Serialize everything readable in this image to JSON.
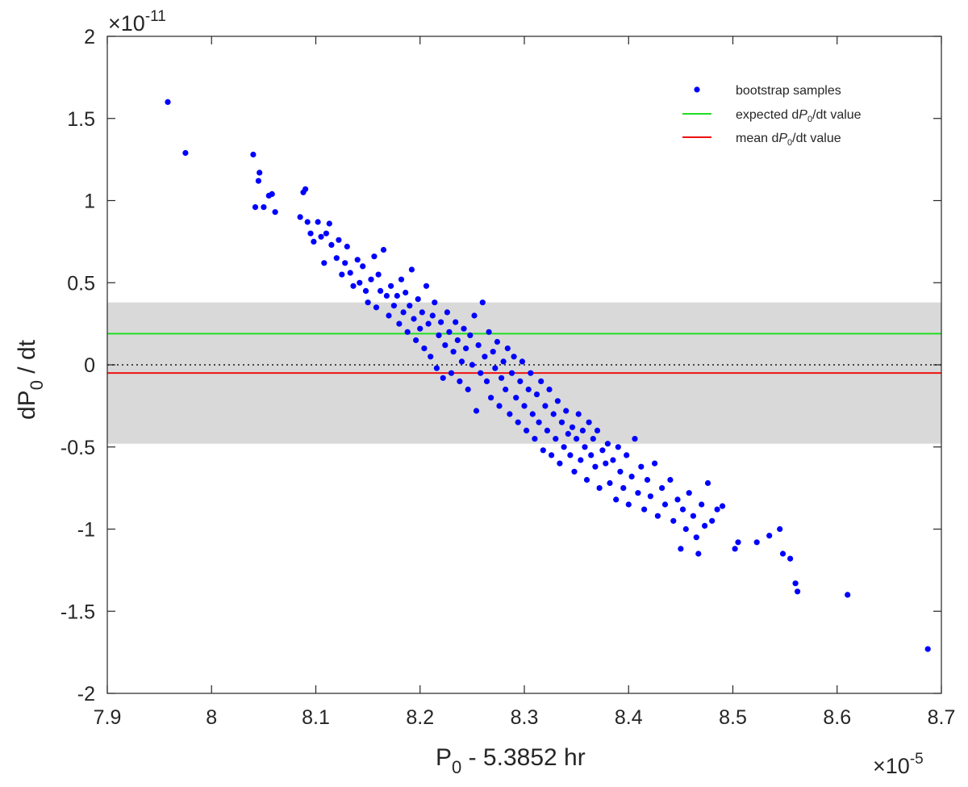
{
  "chart_data": {
    "type": "scatter",
    "xlabel": {
      "main": "P",
      "subscript": "0",
      "rest": " - 5.3852 hr"
    },
    "ylabel": {
      "main": "dP",
      "subscript": "0",
      "rest": " / dt"
    },
    "x_multiplier": {
      "base": "×10",
      "exponent": "-5"
    },
    "y_multiplier": {
      "base": "×10",
      "exponent": "-11"
    },
    "xlim": [
      7.9,
      8.7
    ],
    "ylim": [
      -2,
      2
    ],
    "x_ticks": [
      "7.9",
      "8",
      "8.1",
      "8.2",
      "8.3",
      "8.4",
      "8.5",
      "8.6",
      "8.7"
    ],
    "y_ticks": [
      "2",
      "1.5",
      "1",
      "0.5",
      "0",
      "-0.5",
      "-1",
      "-1.5",
      "-2"
    ],
    "shaded_band": {
      "y_min": -0.48,
      "y_max": 0.38,
      "color": "#d9d9d9"
    },
    "reference_lines": [
      {
        "name": "expected",
        "y": 0.19,
        "color": "#22dd22"
      },
      {
        "name": "mean",
        "y": -0.05,
        "color": "#ee1111"
      },
      {
        "name": "zero",
        "y": 0.0,
        "color": "#333333",
        "style": "dotted"
      }
    ],
    "legend": {
      "position": "top-right",
      "entries": [
        {
          "text": "bootstrap samples",
          "kind": "marker",
          "color": "#0000ff"
        },
        {
          "text_pre": "expected d",
          "text_p": "P",
          "text_sub": "0",
          "text_post": "/dt value",
          "kind": "line",
          "color": "#22dd22"
        },
        {
          "text_pre": "mean d",
          "text_p": "P",
          "text_sub": "0",
          "text_post": "/dt  value",
          "kind": "line",
          "color": "#ee1111"
        }
      ]
    },
    "series": [
      {
        "name": "bootstrap samples",
        "color": "#0000ff",
        "points": [
          [
            7.958,
            1.6
          ],
          [
            7.975,
            1.29
          ],
          [
            8.04,
            1.28
          ],
          [
            8.042,
            0.96
          ],
          [
            8.045,
            1.12
          ],
          [
            8.046,
            1.17
          ],
          [
            8.05,
            0.96
          ],
          [
            8.055,
            1.03
          ],
          [
            8.058,
            1.04
          ],
          [
            8.061,
            0.93
          ],
          [
            8.085,
            0.9
          ],
          [
            8.088,
            1.05
          ],
          [
            8.09,
            1.07
          ],
          [
            8.092,
            0.87
          ],
          [
            8.095,
            0.8
          ],
          [
            8.098,
            0.75
          ],
          [
            8.102,
            0.87
          ],
          [
            8.105,
            0.78
          ],
          [
            8.108,
            0.62
          ],
          [
            8.11,
            0.8
          ],
          [
            8.113,
            0.86
          ],
          [
            8.115,
            0.73
          ],
          [
            8.12,
            0.65
          ],
          [
            8.122,
            0.76
          ],
          [
            8.125,
            0.55
          ],
          [
            8.128,
            0.62
          ],
          [
            8.13,
            0.72
          ],
          [
            8.133,
            0.56
          ],
          [
            8.136,
            0.48
          ],
          [
            8.14,
            0.64
          ],
          [
            8.142,
            0.5
          ],
          [
            8.145,
            0.6
          ],
          [
            8.148,
            0.45
          ],
          [
            8.15,
            0.38
          ],
          [
            8.153,
            0.52
          ],
          [
            8.156,
            0.66
          ],
          [
            8.158,
            0.35
          ],
          [
            8.16,
            0.55
          ],
          [
            8.162,
            0.45
          ],
          [
            8.165,
            0.7
          ],
          [
            8.168,
            0.42
          ],
          [
            8.17,
            0.3
          ],
          [
            8.172,
            0.48
          ],
          [
            8.175,
            0.36
          ],
          [
            8.178,
            0.42
          ],
          [
            8.18,
            0.25
          ],
          [
            8.182,
            0.52
          ],
          [
            8.184,
            0.32
          ],
          [
            8.186,
            0.44
          ],
          [
            8.188,
            0.2
          ],
          [
            8.19,
            0.36
          ],
          [
            8.192,
            0.58
          ],
          [
            8.194,
            0.28
          ],
          [
            8.196,
            0.15
          ],
          [
            8.198,
            0.4
          ],
          [
            8.2,
            0.22
          ],
          [
            8.202,
            0.32
          ],
          [
            8.204,
            0.1
          ],
          [
            8.206,
            0.48
          ],
          [
            8.208,
            0.25
          ],
          [
            8.21,
            0.05
          ],
          [
            8.212,
            0.3
          ],
          [
            8.214,
            0.38
          ],
          [
            8.216,
            -0.02
          ],
          [
            8.218,
            0.18
          ],
          [
            8.22,
            0.26
          ],
          [
            8.222,
            -0.08
          ],
          [
            8.224,
            0.12
          ],
          [
            8.226,
            0.32
          ],
          [
            8.228,
            0.2
          ],
          [
            8.23,
            -0.05
          ],
          [
            8.232,
            0.08
          ],
          [
            8.234,
            0.26
          ],
          [
            8.236,
            0.15
          ],
          [
            8.238,
            -0.1
          ],
          [
            8.24,
            0.02
          ],
          [
            8.242,
            0.22
          ],
          [
            8.244,
            0.1
          ],
          [
            8.246,
            -0.15
          ],
          [
            8.248,
            0.18
          ],
          [
            8.25,
            0.0
          ],
          [
            8.252,
            0.3
          ],
          [
            8.254,
            -0.28
          ],
          [
            8.256,
            0.12
          ],
          [
            8.258,
            -0.05
          ],
          [
            8.26,
            0.38
          ],
          [
            8.262,
            0.05
          ],
          [
            8.264,
            -0.1
          ],
          [
            8.266,
            0.2
          ],
          [
            8.268,
            -0.2
          ],
          [
            8.27,
            0.08
          ],
          [
            8.272,
            -0.02
          ],
          [
            8.274,
            0.14
          ],
          [
            8.276,
            -0.25
          ],
          [
            8.278,
            -0.08
          ],
          [
            8.28,
            0.02
          ],
          [
            8.282,
            -0.15
          ],
          [
            8.284,
            0.1
          ],
          [
            8.286,
            -0.3
          ],
          [
            8.288,
            -0.05
          ],
          [
            8.29,
            0.05
          ],
          [
            8.292,
            -0.2
          ],
          [
            8.294,
            -0.35
          ],
          [
            8.296,
            -0.1
          ],
          [
            8.298,
            0.02
          ],
          [
            8.3,
            -0.25
          ],
          [
            8.302,
            -0.4
          ],
          [
            8.304,
            -0.15
          ],
          [
            8.306,
            -0.05
          ],
          [
            8.308,
            -0.3
          ],
          [
            8.31,
            -0.45
          ],
          [
            8.312,
            -0.18
          ],
          [
            8.314,
            -0.35
          ],
          [
            8.316,
            -0.1
          ],
          [
            8.318,
            -0.52
          ],
          [
            8.32,
            -0.25
          ],
          [
            8.322,
            -0.4
          ],
          [
            8.324,
            -0.15
          ],
          [
            8.326,
            -0.55
          ],
          [
            8.328,
            -0.3
          ],
          [
            8.33,
            -0.45
          ],
          [
            8.332,
            -0.22
          ],
          [
            8.334,
            -0.6
          ],
          [
            8.336,
            -0.35
          ],
          [
            8.338,
            -0.5
          ],
          [
            8.34,
            -0.28
          ],
          [
            8.342,
            -0.42
          ],
          [
            8.344,
            -0.55
          ],
          [
            8.346,
            -0.38
          ],
          [
            8.348,
            -0.65
          ],
          [
            8.35,
            -0.45
          ],
          [
            8.352,
            -0.3
          ],
          [
            8.354,
            -0.58
          ],
          [
            8.356,
            -0.4
          ],
          [
            8.358,
            -0.5
          ],
          [
            8.36,
            -0.7
          ],
          [
            8.362,
            -0.35
          ],
          [
            8.364,
            -0.55
          ],
          [
            8.366,
            -0.45
          ],
          [
            8.368,
            -0.62
          ],
          [
            8.37,
            -0.4
          ],
          [
            8.372,
            -0.75
          ],
          [
            8.375,
            -0.52
          ],
          [
            8.378,
            -0.6
          ],
          [
            8.38,
            -0.48
          ],
          [
            8.382,
            -0.72
          ],
          [
            8.385,
            -0.58
          ],
          [
            8.388,
            -0.82
          ],
          [
            8.39,
            -0.5
          ],
          [
            8.392,
            -0.65
          ],
          [
            8.395,
            -0.75
          ],
          [
            8.398,
            -0.55
          ],
          [
            8.4,
            -0.85
          ],
          [
            8.403,
            -0.68
          ],
          [
            8.406,
            -0.45
          ],
          [
            8.409,
            -0.78
          ],
          [
            8.412,
            -0.62
          ],
          [
            8.415,
            -0.88
          ],
          [
            8.418,
            -0.7
          ],
          [
            8.421,
            -0.8
          ],
          [
            8.425,
            -0.6
          ],
          [
            8.428,
            -0.92
          ],
          [
            8.432,
            -0.75
          ],
          [
            8.435,
            -0.85
          ],
          [
            8.44,
            -0.7
          ],
          [
            8.443,
            -0.95
          ],
          [
            8.447,
            -0.82
          ],
          [
            8.45,
            -1.12
          ],
          [
            8.452,
            -0.88
          ],
          [
            8.455,
            -1.0
          ],
          [
            8.458,
            -0.78
          ],
          [
            8.462,
            -0.92
          ],
          [
            8.465,
            -1.05
          ],
          [
            8.467,
            -1.15
          ],
          [
            8.47,
            -0.85
          ],
          [
            8.473,
            -0.98
          ],
          [
            8.476,
            -0.72
          ],
          [
            8.48,
            -0.95
          ],
          [
            8.485,
            -0.88
          ],
          [
            8.49,
            -0.86
          ],
          [
            8.502,
            -1.12
          ],
          [
            8.505,
            -1.08
          ],
          [
            8.523,
            -1.08
          ],
          [
            8.535,
            -1.04
          ],
          [
            8.545,
            -1.0
          ],
          [
            8.548,
            -1.15
          ],
          [
            8.555,
            -1.18
          ],
          [
            8.56,
            -1.33
          ],
          [
            8.562,
            -1.38
          ],
          [
            8.61,
            -1.4
          ],
          [
            8.687,
            -1.73
          ]
        ]
      }
    ]
  }
}
